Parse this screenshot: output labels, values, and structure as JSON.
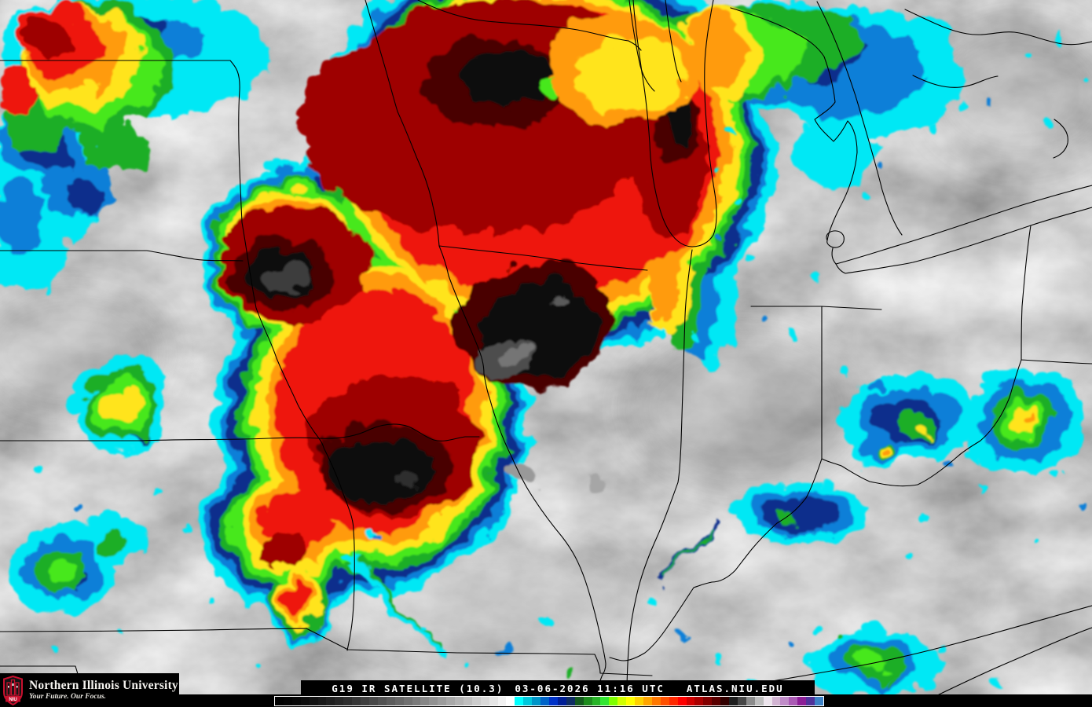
{
  "product": {
    "description": "G19 infrared satellite enhanced imagery over the Midwest United States",
    "background_gray": "#9a9a9a",
    "state_border_color": "#000000"
  },
  "branding": {
    "university_name": "Northern Illinois University",
    "tagline": "Your Future. Our Focus.",
    "logo_acronym": "NIU",
    "brand_red": "#C8102E"
  },
  "caption": {
    "product": "G19 IR SATELLITE (10.3)",
    "datetime": "03-06-2026 11:16 UTC",
    "site": "ATLAS.NIU.EDU"
  },
  "enhancement_palette": {
    "cyan": "#00e8f5",
    "blue": "#0a7fd8",
    "navy": "#0a2d8c",
    "green": "#1fae28",
    "bright_green": "#46e81e",
    "yellow": "#ffe41e",
    "orange": "#ff9b0a",
    "red": "#ee1507",
    "dark_red": "#9e0400",
    "maroon": "#4a0300",
    "black_core": "#0f0f0f",
    "gray_core": "#4e4e4e"
  },
  "colorbar": {
    "border_color": "#ffffff",
    "segments": [
      "#000000",
      "#030303",
      "#070707",
      "#0c0c0c",
      "#121212",
      "#181818",
      "#1f1f1f",
      "#272727",
      "#2e2e2e",
      "#373737",
      "#3f3f3f",
      "#484848",
      "#525252",
      "#5c5c5c",
      "#666666",
      "#707070",
      "#7b7b7b",
      "#868686",
      "#919191",
      "#9c9c9c",
      "#a8a8a8",
      "#b3b3b3",
      "#bfbfbf",
      "#cccccc",
      "#d8d8d8",
      "#e5e5e5",
      "#f2f2f2",
      "#ffffff",
      "#00ffff",
      "#00c8dc",
      "#0096c8",
      "#0064c8",
      "#0032c8",
      "#001e96",
      "#0f2d64",
      "#145a1e",
      "#1e8c1e",
      "#28b428",
      "#32e632",
      "#7dff00",
      "#d2ff00",
      "#ffff00",
      "#ffd200",
      "#ffa500",
      "#ff7800",
      "#ff5000",
      "#ff2800",
      "#ff0000",
      "#d20000",
      "#aa0000",
      "#820000",
      "#5a0000",
      "#320000",
      "#1e1e1e",
      "#464646",
      "#8c8c8c",
      "#bebebe",
      "#ece4ec",
      "#d2b4d2",
      "#c08cc8",
      "#aa5ab4",
      "#8c1e96",
      "#50329b",
      "#3c82c8"
    ]
  }
}
